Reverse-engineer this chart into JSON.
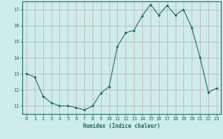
{
  "x": [
    0,
    1,
    2,
    3,
    4,
    5,
    6,
    7,
    8,
    9,
    10,
    11,
    12,
    13,
    14,
    15,
    16,
    17,
    18,
    19,
    20,
    21,
    22,
    23
  ],
  "y": [
    13.0,
    12.8,
    11.6,
    11.2,
    11.0,
    11.0,
    10.9,
    10.75,
    11.0,
    11.8,
    12.2,
    14.7,
    15.55,
    15.7,
    16.6,
    17.3,
    16.65,
    17.25,
    16.65,
    17.0,
    15.85,
    14.0,
    11.85,
    12.1
  ],
  "line_color": "#1a6b5e",
  "marker": "D",
  "markersize": 1.8,
  "linewidth": 0.8,
  "xlim": [
    -0.5,
    23.5
  ],
  "ylim": [
    10.5,
    17.5
  ],
  "yticks": [
    11,
    12,
    13,
    14,
    15,
    16,
    17
  ],
  "xticks": [
    0,
    1,
    2,
    3,
    4,
    5,
    6,
    7,
    8,
    9,
    10,
    11,
    12,
    13,
    14,
    15,
    16,
    17,
    18,
    19,
    20,
    21,
    22,
    23
  ],
  "xlabel": "Humidex (Indice chaleur)",
  "xlabel_fontsize": 5.5,
  "tick_fontsize": 5.0,
  "bg_color": "#ceecea",
  "grid_color": "#c4a8a8",
  "axis_color": "#1a6b5e"
}
